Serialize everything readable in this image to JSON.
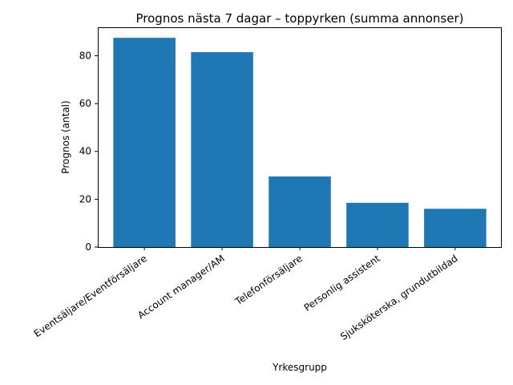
{
  "chart_data": {
    "type": "bar",
    "title": "Prognos nästa 7 dagar – toppyrken (summa annonser)",
    "xlabel": "Yrkesgrupp",
    "ylabel": "Prognos (antal)",
    "categories": [
      "Eventsäljare/Eventförsäljare",
      "Account manager/AM",
      "Telefonförsäljare",
      "Personlig assistent",
      "Sjuksköterska, grundutbildad"
    ],
    "values": [
      87.5,
      81.5,
      29.5,
      18.5,
      16.0
    ],
    "ylim": [
      0,
      91.9
    ],
    "yticks": [
      0,
      20,
      40,
      60,
      80
    ],
    "bar_color": "#1f77b4",
    "grid": false,
    "legend": "none"
  }
}
